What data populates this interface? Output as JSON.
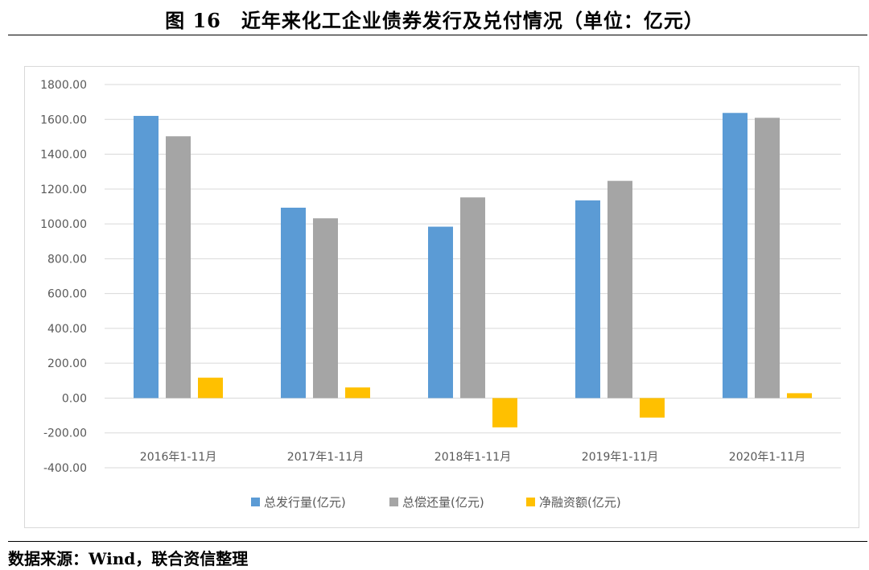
{
  "figure": {
    "title": "图 16　近年来化工企业债券发行及兑付情况（单位：亿元）",
    "source": "数据来源：Wind，联合资信整理"
  },
  "chart_data": {
    "type": "bar",
    "categories": [
      "2016年1-11月",
      "2017年1-11月",
      "2018年1-11月",
      "2019年1-11月",
      "2020年1-11月"
    ],
    "series": [
      {
        "name": "总发行量(亿元)",
        "color": "#5b9bd5",
        "values": [
          1620,
          1093,
          984,
          1135,
          1637
        ]
      },
      {
        "name": "总偿还量(亿元)",
        "color": "#a5a5a5",
        "values": [
          1503,
          1032,
          1152,
          1247,
          1609
        ]
      },
      {
        "name": "净融资额(亿元)",
        "color": "#ffc000",
        "values": [
          117,
          61,
          -168,
          -112,
          28
        ]
      }
    ],
    "ylim": [
      -400,
      1800
    ],
    "yticks": [
      "1800.00",
      "1600.00",
      "1400.00",
      "1200.00",
      "1000.00",
      "800.00",
      "600.00",
      "400.00",
      "200.00",
      "0.00",
      "-200.00",
      "-400.00"
    ],
    "grid": true,
    "legend": "bottom"
  }
}
